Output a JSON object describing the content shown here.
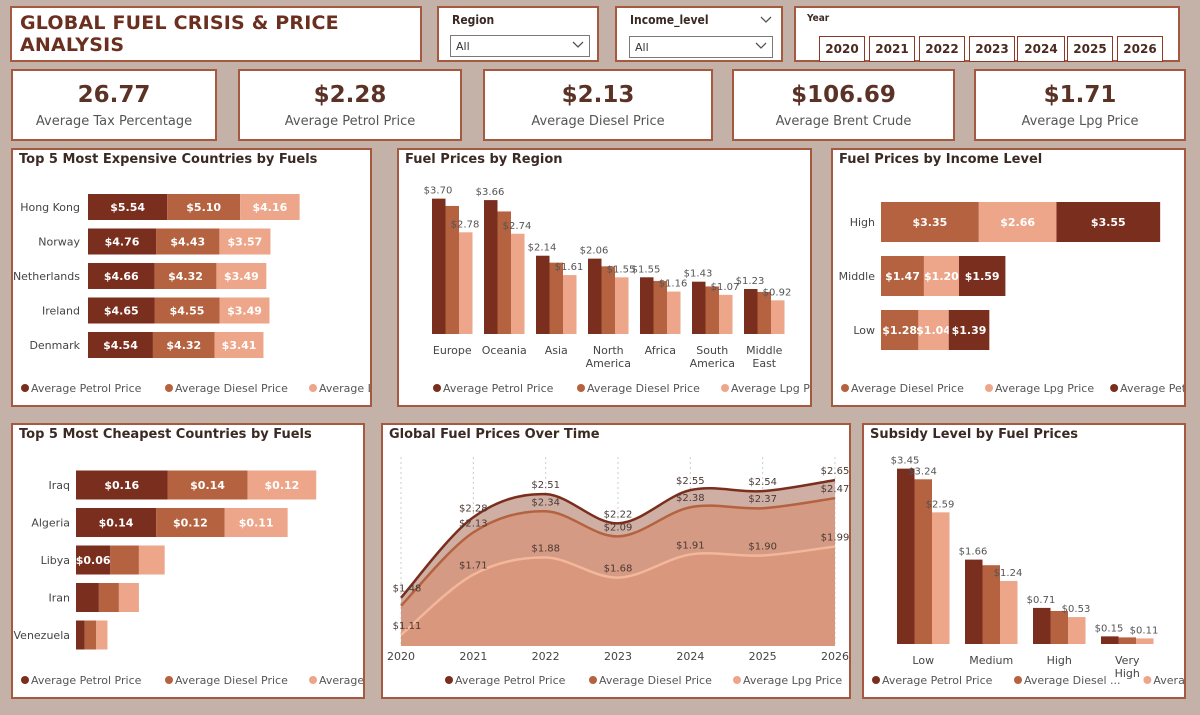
{
  "header": {
    "title": "GLOBAL FUEL CRISIS & PRICE ANALYSIS"
  },
  "filters": {
    "region": {
      "label": "Region",
      "value": "All"
    },
    "income": {
      "label": "Income_level",
      "value": "All"
    },
    "year": {
      "label": "Year",
      "options": [
        "2020",
        "2021",
        "2022",
        "2023",
        "2024",
        "2025",
        "2026"
      ]
    }
  },
  "kpis": [
    {
      "value": "26.77",
      "label": "Average Tax Percentage"
    },
    {
      "value": "$2.28",
      "label": "Average Petrol Price"
    },
    {
      "value": "$2.13",
      "label": "Average Diesel Price"
    },
    {
      "value": "$106.69",
      "label": "Average Brent Crude"
    },
    {
      "value": "$1.71",
      "label": "Average Lpg Price"
    }
  ],
  "colors": {
    "petrol": "#7a2e1e",
    "diesel": "#b4623f",
    "lpg": "#eda68a",
    "border": "#a5593f"
  },
  "chart_data": [
    {
      "id": "expensive",
      "type": "bar",
      "orientation": "horizontal-stacked",
      "title": "Top 5 Most Expensive Countries by Fuels",
      "categories": [
        "Hong Kong",
        "Norway",
        "Netherlands",
        "Ireland",
        "Denmark"
      ],
      "series": [
        {
          "name": "Average Petrol Price",
          "values": [
            5.54,
            4.76,
            4.66,
            4.65,
            4.54
          ],
          "labels": [
            "$5.54",
            "$4.76",
            "$4.66",
            "$4.65",
            "$4.54"
          ]
        },
        {
          "name": "Average Diesel Price",
          "values": [
            5.1,
            4.43,
            4.32,
            4.55,
            4.32
          ],
          "labels": [
            "$5.10",
            "$4.43",
            "$4.32",
            "$4.55",
            "$4.32"
          ]
        },
        {
          "name": "Average Lpg Price",
          "values": [
            4.16,
            3.57,
            3.49,
            3.49,
            3.41
          ],
          "labels": [
            "$4.16",
            "$3.57",
            "$3.49",
            "$3.49",
            "$3.41"
          ]
        }
      ],
      "legend": [
        "Average Petrol Price",
        "Average Diesel Price",
        "Average Lpg Price"
      ]
    },
    {
      "id": "region",
      "type": "bar",
      "orientation": "vertical-clustered",
      "title": "Fuel Prices by Region",
      "categories": [
        "Europe",
        "Oceania",
        "Asia",
        "North America",
        "Africa",
        "South America",
        "Middle East"
      ],
      "series": [
        {
          "name": "Average Petrol Price",
          "values": [
            3.7,
            3.66,
            2.14,
            2.06,
            1.55,
            1.43,
            1.23
          ]
        },
        {
          "name": "Average Diesel Price",
          "values": [
            3.5,
            3.35,
            1.95,
            1.85,
            1.45,
            1.3,
            1.15
          ]
        },
        {
          "name": "Average Lpg Price",
          "values": [
            2.78,
            2.74,
            1.61,
            1.55,
            1.16,
            1.07,
            0.92
          ]
        }
      ],
      "labels": [
        {
          "cat": 0,
          "series": 0,
          "text": "$3.70"
        },
        {
          "cat": 0,
          "series": 2,
          "text": "$2.78"
        },
        {
          "cat": 1,
          "series": 0,
          "text": "$3.66"
        },
        {
          "cat": 1,
          "series": 2,
          "text": "$2.74"
        },
        {
          "cat": 2,
          "series": 0,
          "text": "$2.14"
        },
        {
          "cat": 2,
          "series": 2,
          "text": "$1.61"
        },
        {
          "cat": 3,
          "series": 0,
          "text": "$2.06"
        },
        {
          "cat": 3,
          "series": 2,
          "text": "$1.55"
        },
        {
          "cat": 4,
          "series": 0,
          "text": "$1.55"
        },
        {
          "cat": 4,
          "series": 2,
          "text": "$1.16"
        },
        {
          "cat": 5,
          "series": 0,
          "text": "$1.43"
        },
        {
          "cat": 5,
          "series": 2,
          "text": "$1.07"
        },
        {
          "cat": 6,
          "series": 0,
          "text": "$1.23"
        },
        {
          "cat": 6,
          "series": 2,
          "text": "$0.92"
        }
      ],
      "ylim": [
        0,
        4.1
      ],
      "legend": [
        "Average Petrol Price",
        "Average Diesel Price",
        "Average Lpg Price"
      ]
    },
    {
      "id": "income",
      "type": "bar",
      "orientation": "horizontal-stacked",
      "title": "Fuel Prices by Income Level",
      "categories": [
        "High",
        "Middle",
        "Low"
      ],
      "series": [
        {
          "name": "Average Diesel Price",
          "values": [
            3.35,
            1.47,
            1.28
          ],
          "labels": [
            "$3.35",
            "$1.47",
            "$1.28"
          ]
        },
        {
          "name": "Average Lpg Price",
          "values": [
            2.66,
            1.2,
            1.04
          ],
          "labels": [
            "$2.66",
            "$1.20",
            "$1.04"
          ]
        },
        {
          "name": "Average Petrol Price",
          "values": [
            3.55,
            1.59,
            1.39
          ],
          "labels": [
            "$3.55",
            "$1.59",
            "$1.39"
          ]
        }
      ],
      "legend": [
        "Average Diesel Price",
        "Average Lpg Price",
        "Average Petrol Pr..."
      ]
    },
    {
      "id": "cheapest",
      "type": "bar",
      "orientation": "horizontal-stacked",
      "title": "Top 5 Most Cheapest Countries by Fuels",
      "categories": [
        "Iraq",
        "Algeria",
        "Libya",
        "Iran",
        "Venezuela"
      ],
      "series": [
        {
          "name": "Average Petrol Price",
          "values": [
            0.16,
            0.14,
            0.06,
            0.04,
            0.015
          ],
          "labels": [
            "$0.16",
            "$0.14",
            "$0.06",
            "",
            ""
          ]
        },
        {
          "name": "Average Diesel Price",
          "values": [
            0.14,
            0.12,
            0.05,
            0.035,
            0.02
          ],
          "labels": [
            "$0.14",
            "$0.12",
            "",
            "",
            ""
          ]
        },
        {
          "name": "Average Lpg Price",
          "values": [
            0.12,
            0.11,
            0.045,
            0.035,
            0.02
          ],
          "labels": [
            "$0.12",
            "$0.11",
            "",
            "",
            ""
          ]
        }
      ],
      "legend": [
        "Average Petrol Price",
        "Average Diesel Price",
        "Average Lpg Pr..."
      ]
    },
    {
      "id": "time",
      "type": "area",
      "title": "Global Fuel Prices Over Time",
      "x": [
        "2020",
        "2021",
        "2022",
        "2023",
        "2024",
        "2025",
        "2026"
      ],
      "series": [
        {
          "name": "Average Petrol Price",
          "values": [
            1.48,
            2.28,
            2.51,
            2.22,
            2.55,
            2.54,
            2.65
          ],
          "labels": [
            "$1.48",
            "$2.28",
            "$2.51",
            "$2.22",
            "$2.55",
            "$2.54",
            "$2.65"
          ]
        },
        {
          "name": "Average Diesel Price",
          "values": [
            1.4,
            2.13,
            2.34,
            2.09,
            2.38,
            2.37,
            2.47
          ],
          "labels": [
            "",
            "$2.13",
            "$2.34",
            "$2.09",
            "$2.38",
            "$2.37",
            "$2.47"
          ]
        },
        {
          "name": "Average Lpg Price",
          "values": [
            1.11,
            1.71,
            1.88,
            1.68,
            1.91,
            1.9,
            1.99
          ],
          "labels": [
            "$1.11",
            "$1.71",
            "$1.88",
            "$1.68",
            "$1.91",
            "$1.90",
            "$1.99"
          ]
        }
      ],
      "ylim": [
        1.0,
        2.8
      ],
      "legend": [
        "Average Petrol Price",
        "Average Diesel Price",
        "Average Lpg Price"
      ]
    },
    {
      "id": "subsidy",
      "type": "bar",
      "orientation": "vertical-clustered",
      "title": "Subsidy Level by Fuel Prices",
      "categories": [
        "Low",
        "Medium",
        "High",
        "Very High"
      ],
      "series": [
        {
          "name": "Average Petrol Price",
          "values": [
            3.45,
            1.66,
            0.71,
            0.15
          ],
          "labels": [
            "$3.45",
            "$1.66",
            "$0.71",
            "$0.15"
          ]
        },
        {
          "name": "Average Diesel Price",
          "values": [
            3.24,
            1.55,
            0.65,
            0.13
          ],
          "labels": [
            "$3.24",
            "",
            "",
            ""
          ]
        },
        {
          "name": "Average Lpg Price",
          "values": [
            2.59,
            1.24,
            0.53,
            0.11
          ],
          "labels": [
            "$2.59",
            "$1.24",
            "$0.53",
            "$0.11"
          ]
        }
      ],
      "ylim": [
        0,
        3.6
      ],
      "legend": [
        "Average Petrol Price",
        "Average Diesel ...",
        "Average Lp..."
      ]
    }
  ]
}
